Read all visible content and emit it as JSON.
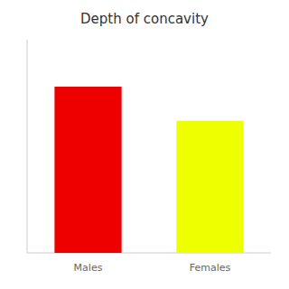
{
  "chart_data": {
    "type": "bar",
    "title": "Depth of concavity",
    "categories": [
      "Males",
      "Females"
    ],
    "values": [
      0.78,
      0.62
    ],
    "colors": [
      "#ee0000",
      "#eeff00"
    ],
    "ylim": [
      0,
      1.0
    ],
    "yticks": [],
    "tick_labels": "x"
  }
}
